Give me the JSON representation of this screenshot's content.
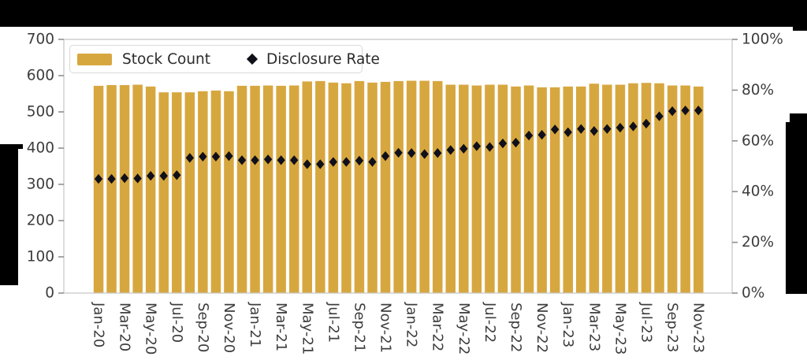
{
  "legend": {
    "stock_label": "Stock Count",
    "rate_label": "Disclosure Rate"
  },
  "colors": {
    "bar": "#D7A73F",
    "bar_edge": "#ffffff",
    "marker": "#10101a",
    "spine": "#c8c8c8",
    "tick_mark": "#8f8f8f",
    "tick_label": "#3d3d3d",
    "background": "#ffffff",
    "decoration": "#000000"
  },
  "axes": {
    "left_tick_labels": [
      "0",
      "100",
      "200",
      "300",
      "400",
      "500",
      "600",
      "700"
    ],
    "right_tick_labels": [
      "0%",
      "20%",
      "40%",
      "60%",
      "80%",
      "100%"
    ],
    "x_tick_labels": [
      "Jan-20",
      "Mar-20",
      "May-20",
      "Jul-20",
      "Sep-20",
      "Nov-20",
      "Jan-21",
      "Mar-21",
      "May-21",
      "Jul-21",
      "Sep-21",
      "Nov-21",
      "Jan-22",
      "Mar-22",
      "May-22",
      "Jul-22",
      "Sep-22",
      "Nov-22",
      "Jan-23",
      "Mar-23",
      "May-23",
      "Jul-23",
      "Sep-23",
      "Nov-23"
    ]
  },
  "chart_data": {
    "type": "bar",
    "title": "",
    "xlabel": "",
    "ylabel": "",
    "grid": false,
    "legend_position": "upper-left",
    "categories": [
      "Jan-20",
      "Feb-20",
      "Mar-20",
      "Apr-20",
      "May-20",
      "Jun-20",
      "Jul-20",
      "Aug-20",
      "Sep-20",
      "Oct-20",
      "Nov-20",
      "Dec-20",
      "Jan-21",
      "Feb-21",
      "Mar-21",
      "Apr-21",
      "May-21",
      "Jun-21",
      "Jul-21",
      "Aug-21",
      "Sep-21",
      "Oct-21",
      "Nov-21",
      "Dec-21",
      "Jan-22",
      "Feb-22",
      "Mar-22",
      "Apr-22",
      "May-22",
      "Jun-22",
      "Jul-22",
      "Aug-22",
      "Sep-22",
      "Oct-22",
      "Nov-22",
      "Dec-22",
      "Jan-23",
      "Feb-23",
      "Mar-23",
      "Apr-23",
      "May-23",
      "Jun-23",
      "Jul-23",
      "Aug-23",
      "Sep-23",
      "Oct-23",
      "Nov-23"
    ],
    "x_tick_every": 2,
    "series": [
      {
        "name": "Stock Count",
        "type": "bar",
        "axis": "left",
        "values": [
          573,
          575,
          575,
          576,
          571,
          555,
          555,
          555,
          558,
          560,
          558,
          573,
          573,
          574,
          573,
          574,
          585,
          586,
          582,
          580,
          586,
          582,
          584,
          586,
          587,
          587,
          586,
          576,
          576,
          574,
          576,
          576,
          571,
          574,
          569,
          569,
          571,
          571,
          579,
          576,
          576,
          580,
          581,
          580,
          574,
          574,
          571
        ]
      },
      {
        "name": "Disclosure Rate",
        "type": "scatter",
        "axis": "right",
        "values": [
          45.0,
          45.0,
          45.3,
          45.2,
          46.2,
          46.2,
          46.5,
          53.3,
          53.8,
          53.8,
          54.0,
          52.4,
          52.4,
          52.7,
          52.4,
          52.4,
          50.8,
          50.8,
          51.7,
          51.7,
          52.2,
          51.7,
          54.0,
          55.3,
          55.2,
          54.8,
          55.2,
          56.4,
          56.9,
          57.9,
          57.6,
          59.0,
          59.3,
          62.1,
          62.4,
          64.5,
          63.4,
          64.7,
          63.9,
          64.7,
          65.2,
          65.7,
          66.8,
          69.7,
          71.7,
          72.0,
          72.0
        ]
      }
    ],
    "left_axis": {
      "range": [
        0,
        700
      ],
      "tick_step": 100
    },
    "right_axis": {
      "range": [
        0,
        100
      ],
      "tick_step": 20,
      "format": "percent"
    }
  }
}
